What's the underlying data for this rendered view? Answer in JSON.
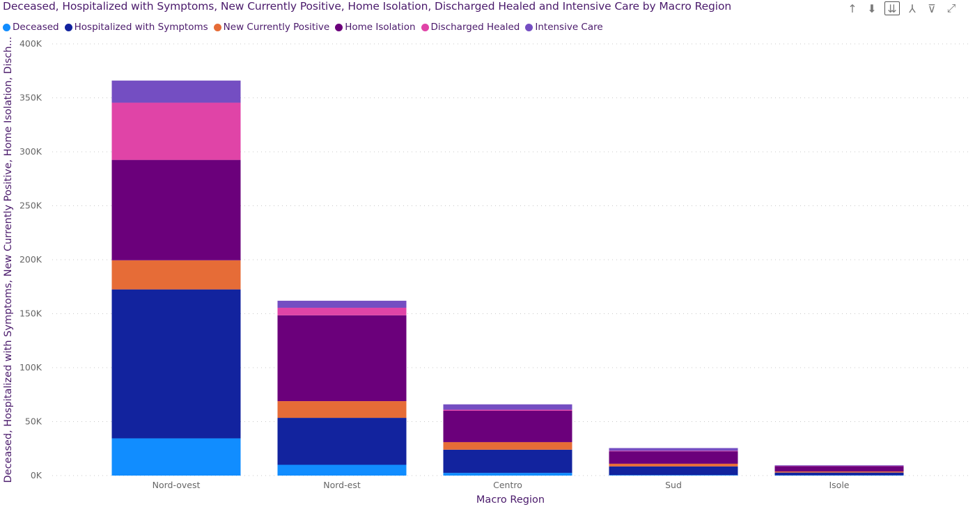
{
  "title": "Deceased, Hospitalized with Symptoms, New Currently Positive, Home Isolation, Discharged Healed and Intensive Care by Macro Region",
  "toolbar": [
    {
      "name": "drill-up-icon",
      "glyph": "↑"
    },
    {
      "name": "drill-down-icon",
      "glyph": "⬇"
    },
    {
      "name": "expand-next-level-icon",
      "glyph": "⇊"
    },
    {
      "name": "expand-hierarchy-icon",
      "glyph": "⅄"
    },
    {
      "name": "filter-icon",
      "glyph": "⊽"
    },
    {
      "name": "focus-mode-icon",
      "glyph": "⤢"
    }
  ],
  "chart_data": {
    "type": "bar",
    "stacked": true,
    "categories": [
      "Nord-ovest",
      "Nord-est",
      "Centro",
      "Sud",
      "Isole"
    ],
    "series": [
      {
        "name": "Deceased",
        "color": "#118DFF",
        "values": [
          34500,
          10000,
          2500,
          500,
          300
        ]
      },
      {
        "name": "Hospitalized with Symptoms",
        "color": "#12239E",
        "values": [
          138000,
          43500,
          21500,
          8000,
          2500
        ]
      },
      {
        "name": "New Currently Positive",
        "color": "#E66C37",
        "values": [
          27000,
          15500,
          7000,
          2500,
          1000
        ]
      },
      {
        "name": "Home Isolation",
        "color": "#6B007B",
        "values": [
          93000,
          79500,
          29000,
          11500,
          5000
        ]
      },
      {
        "name": "Discharged Healed",
        "color": "#E044A7",
        "values": [
          53000,
          7000,
          1000,
          500,
          200
        ]
      },
      {
        "name": "Intensive Care",
        "color": "#744EC2",
        "values": [
          20500,
          6500,
          5000,
          2500,
          500
        ]
      }
    ],
    "y_ticks": [
      "0K",
      "50K",
      "100K",
      "150K",
      "200K",
      "250K",
      "300K",
      "350K",
      "400K"
    ],
    "ylim": [
      0,
      400000
    ],
    "xlabel": "Macro Region",
    "ylabel": "Deceased, Hospitalized with Symptoms, New Currently Positive, Home Isolation, Disch...",
    "grid": true,
    "legend_position": "top-left"
  }
}
